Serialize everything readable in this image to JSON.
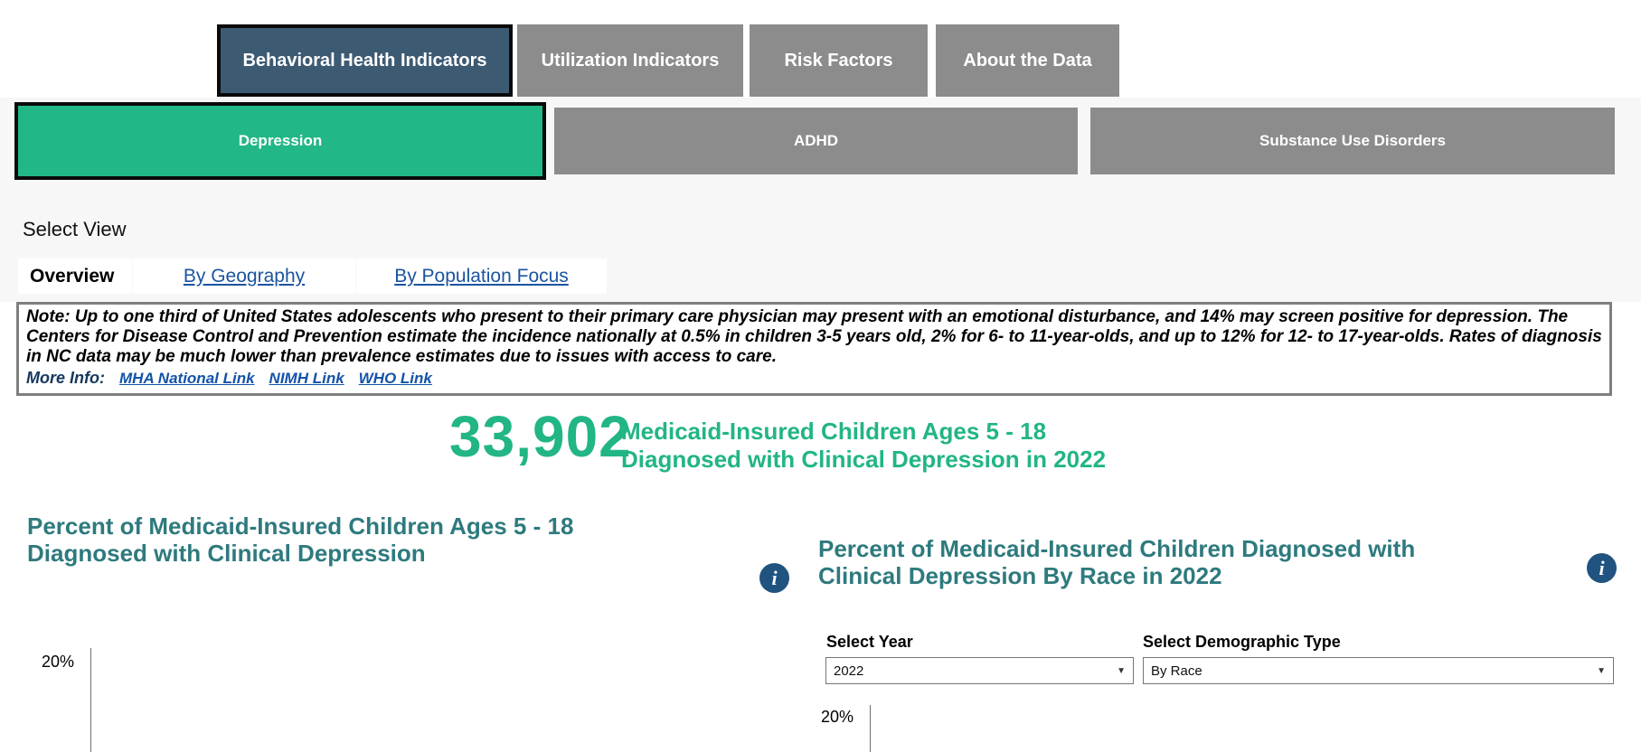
{
  "primary_tabs": [
    {
      "label": "Behavioral Health Indicators",
      "selected": true
    },
    {
      "label": "Utilization Indicators",
      "selected": false
    },
    {
      "label": "Risk Factors",
      "selected": false
    },
    {
      "label": "About the Data",
      "selected": false
    }
  ],
  "secondary_tabs": [
    {
      "label": "Depression",
      "selected": true
    },
    {
      "label": "ADHD",
      "selected": false
    },
    {
      "label": "Substance Use Disorders",
      "selected": false
    }
  ],
  "select_view": {
    "label": "Select View",
    "tabs": [
      {
        "label": "Overview",
        "selected": true
      },
      {
        "label": "By Geography",
        "selected": false
      },
      {
        "label": "By Population Focus",
        "selected": false
      }
    ]
  },
  "note": {
    "text": "Note: Up to one third of United States adolescents who present to their primary care physician may present with an emotional disturbance, and 14% may screen positive for depression. The Centers for Disease Control and Prevention estimate the incidence nationally at 0.5% in children 3-5 years old, 2% for 6- to 11-year-olds, and up to 12% for 12- to 17-year-olds. Rates of diagnosis in NC data may be much lower than prevalence estimates due to issues with access to care.",
    "more_info_label": "More Info:",
    "links": [
      {
        "label": "MHA National Link"
      },
      {
        "label": "NIMH Link"
      },
      {
        "label": "WHO Link"
      }
    ]
  },
  "kpi": {
    "value": "33,902",
    "label_line1": "Medicaid-Insured Children Ages 5 - 18",
    "label_line2": "Diagnosed with Clinical Depression in 2022"
  },
  "left_chart": {
    "title_line1": "Percent of Medicaid-Insured Children Ages 5 - 18",
    "title_line2": "Diagnosed with Clinical Depression",
    "y_axis_top_tick": "20%",
    "info_icon": "info-i"
  },
  "right_chart": {
    "title_line1": "Percent of Medicaid-Insured Children Diagnosed with",
    "title_line2": "Clinical Depression By Race in 2022",
    "y_axis_top_tick": "20%",
    "info_icon": "info-i",
    "filters": {
      "year": {
        "label": "Select Year",
        "value": "2022"
      },
      "demographic": {
        "label": "Select Demographic Type",
        "value": "By Race"
      }
    }
  },
  "colors": {
    "selected_primary_tab": "#3D5A73",
    "unselected_tab": "#8C8C8C",
    "selected_secondary_tab": "#21B787",
    "kpi_green": "#22B585",
    "chart_title_teal": "#2E7A7E",
    "info_icon_blue": "#215380",
    "link_blue": "#1353A8",
    "more_info_navy": "#17375E"
  }
}
